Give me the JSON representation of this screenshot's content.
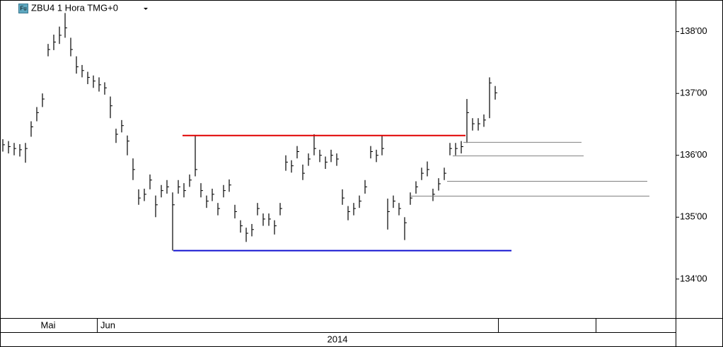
{
  "chart_data": {
    "type": "ohlc",
    "title": "ZBU4 1 Hora TMG+0",
    "icon_text": "Fu",
    "months": [
      "Mai",
      "Jun"
    ],
    "year": "2014",
    "color": "#000000",
    "ylim": [
      133.37,
      138.51
    ],
    "yticks": [
      {
        "value": 134,
        "label": "134'00"
      },
      {
        "value": 135,
        "label": "135'00"
      },
      {
        "value": 136,
        "label": "136'00"
      },
      {
        "value": 137,
        "label": "137'00"
      },
      {
        "value": 138,
        "label": "138'00"
      }
    ],
    "high": [
      136.26,
      136.23,
      136.2,
      136.18,
      136.2,
      136.55,
      136.78,
      137.0,
      137.8,
      137.95,
      138.08,
      138.3,
      137.9,
      137.6,
      137.46,
      137.35,
      137.29,
      137.26,
      137.18,
      136.95,
      136.43,
      136.57,
      136.32,
      135.95,
      135.45,
      135.46,
      135.69,
      135.35,
      135.52,
      135.6,
      135.4,
      135.6,
      135.55,
      135.69,
      136.32,
      135.55,
      135.35,
      135.46,
      135.23,
      135.52,
      135.61,
      135.2,
      134.95,
      134.83,
      134.89,
      135.23,
      135.06,
      135.06,
      134.95,
      135.23,
      136.0,
      135.92,
      136.15,
      135.85,
      136.03,
      136.34,
      136.09,
      135.98,
      136.09,
      136.03,
      135.45,
      135.18,
      135.23,
      135.35,
      135.6,
      136.15,
      136.09,
      136.32,
      135.3,
      135.35,
      135.23,
      135.0,
      135.4,
      135.58,
      135.8,
      135.9,
      135.46,
      135.63,
      135.8,
      136.2,
      136.2,
      136.23,
      136.91,
      136.6,
      136.6,
      136.66,
      137.26,
      137.12
    ],
    "low": [
      136.06,
      136.03,
      136.0,
      135.98,
      135.88,
      136.3,
      136.55,
      136.78,
      137.6,
      137.7,
      137.8,
      137.9,
      137.6,
      137.32,
      137.26,
      137.15,
      137.09,
      137.03,
      136.98,
      136.6,
      136.2,
      136.37,
      136.0,
      135.6,
      135.2,
      135.26,
      135.45,
      135.0,
      135.32,
      135.38,
      134.46,
      135.38,
      135.32,
      135.49,
      135.66,
      135.32,
      135.15,
      135.26,
      135.03,
      135.32,
      135.41,
      134.98,
      134.75,
      134.6,
      134.69,
      135.03,
      134.86,
      134.86,
      134.72,
      135.03,
      135.75,
      135.72,
      135.95,
      135.6,
      135.83,
      136.0,
      135.89,
      135.78,
      135.89,
      135.83,
      135.2,
      134.95,
      135.03,
      135.15,
      135.38,
      135.95,
      135.89,
      136.0,
      134.8,
      135.15,
      135.03,
      134.63,
      135.2,
      135.38,
      135.6,
      135.66,
      135.26,
      135.43,
      135.6,
      136.0,
      136.0,
      136.03,
      136.2,
      136.4,
      136.4,
      136.46,
      136.6,
      136.9
    ],
    "close": [
      136.17,
      136.14,
      136.11,
      136.09,
      136.11,
      136.46,
      136.69,
      136.91,
      137.71,
      137.83,
      137.94,
      138.06,
      137.71,
      137.43,
      137.37,
      137.26,
      137.2,
      137.14,
      137.09,
      136.8,
      136.34,
      136.48,
      136.23,
      135.77,
      135.31,
      135.37,
      135.6,
      135.2,
      135.43,
      135.49,
      135.2,
      135.49,
      135.43,
      135.6,
      135.77,
      135.43,
      135.26,
      135.37,
      135.14,
      135.43,
      135.52,
      135.09,
      134.86,
      134.74,
      134.8,
      135.14,
      134.97,
      134.97,
      134.86,
      135.14,
      135.89,
      135.83,
      136.06,
      135.71,
      135.94,
      136.11,
      136.0,
      135.89,
      136.0,
      135.94,
      135.31,
      135.09,
      135.14,
      135.26,
      135.49,
      136.06,
      136.0,
      136.11,
      135.09,
      135.26,
      135.14,
      134.91,
      135.31,
      135.49,
      135.71,
      135.77,
      135.37,
      135.54,
      135.71,
      136.11,
      136.11,
      136.14,
      136.69,
      136.51,
      136.51,
      136.57,
      137.17,
      137.01
    ],
    "levels": [
      {
        "value": 136.32,
        "color": "#e00000"
      },
      {
        "value": 134.46,
        "color": "#1010d0"
      },
      {
        "value": 136.21,
        "color": "#808080"
      },
      {
        "value": 135.99,
        "color": "#808080"
      },
      {
        "value": 135.58,
        "color": "#808080"
      },
      {
        "value": 135.34,
        "color": "#808080"
      }
    ]
  }
}
